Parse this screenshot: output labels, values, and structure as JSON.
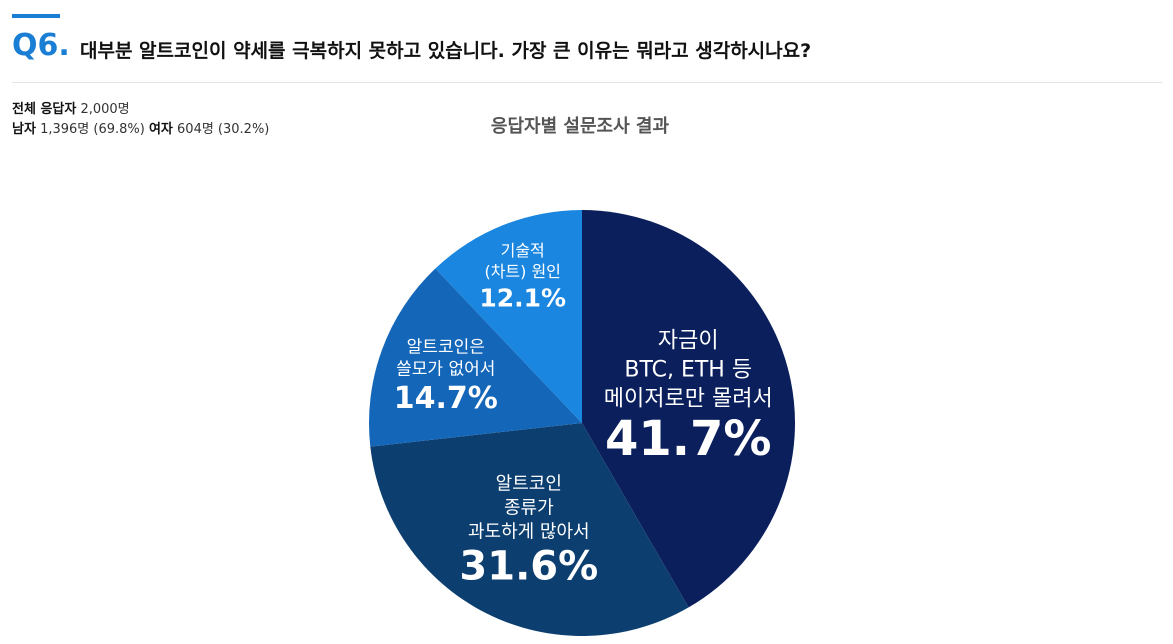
{
  "header": {
    "number": "Q6.",
    "question": "대부분 알트코인이 약세를 극복하지 못하고 있습니다. 가장 큰 이유는 뭐라고 생각하시나요?"
  },
  "respondents": {
    "total_label": "전체 응답자",
    "total": "2,000명",
    "male_label": "남자",
    "male": "1,396명 (69.8%)",
    "female_label": "여자",
    "female": "604명 (30.2%)"
  },
  "chart_data": {
    "type": "pie",
    "title": "응답자별 설문조사 결과",
    "categories": [
      [
        "자금이",
        "BTC, ETH 등",
        "메이저로만 몰려서"
      ],
      [
        "알트코인",
        "종류가",
        "과도하게 많아서"
      ],
      [
        "알트코인은",
        "쓸모가 없어서"
      ],
      [
        "기술적",
        "(차트) 원인"
      ]
    ],
    "values": [
      41.7,
      31.6,
      14.7,
      12.1
    ],
    "value_labels": [
      "41.7%",
      "31.6%",
      "14.7%",
      "12.1%"
    ],
    "colors": [
      "#0b1f5c",
      "#0c3f70",
      "#1467b8",
      "#1a86e0"
    ]
  }
}
